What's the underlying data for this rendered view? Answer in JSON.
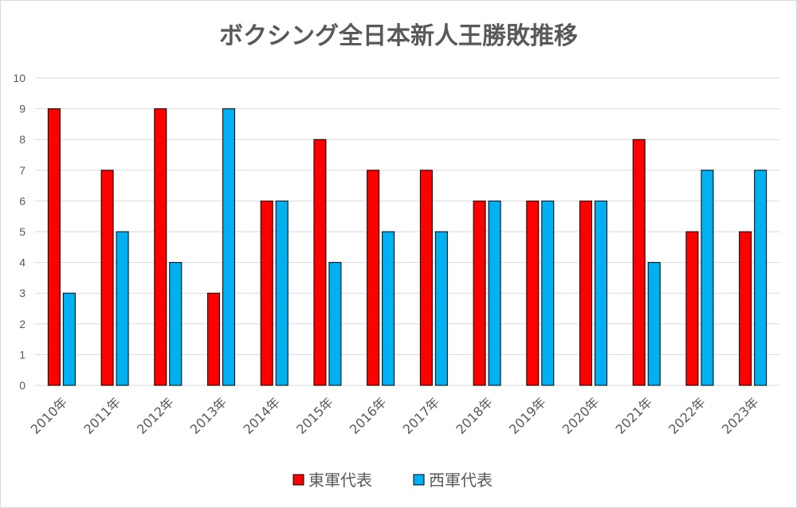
{
  "chart_data": {
    "type": "bar",
    "title": "ボクシング全日本新人王勝敗推移",
    "categories": [
      "2010年",
      "2011年",
      "2012年",
      "2013年",
      "2014年",
      "2015年",
      "2016年",
      "2017年",
      "2018年",
      "2019年",
      "2020年",
      "2021年",
      "2022年",
      "2023年"
    ],
    "series": [
      {
        "name": "東軍代表",
        "color": "#ff0000",
        "values": [
          9,
          7,
          9,
          3,
          6,
          8,
          7,
          7,
          6,
          6,
          6,
          8,
          5,
          5
        ]
      },
      {
        "name": "西軍代表",
        "color": "#00b0f0",
        "values": [
          3,
          5,
          4,
          9,
          6,
          4,
          5,
          5,
          6,
          6,
          6,
          4,
          7,
          7
        ]
      }
    ],
    "ylim": [
      0,
      10
    ],
    "yticks": [
      0,
      1,
      2,
      3,
      4,
      5,
      6,
      7,
      8,
      9,
      10
    ],
    "grid": true,
    "legend_position": "bottom"
  }
}
